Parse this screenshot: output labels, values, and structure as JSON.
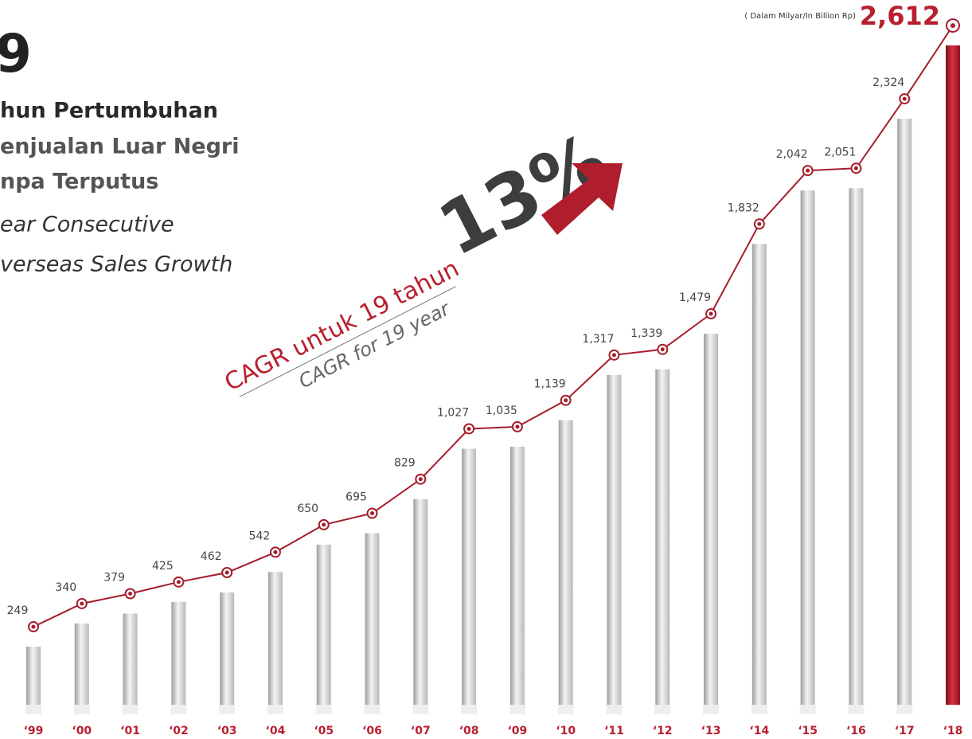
{
  "chart_data": {
    "type": "bar-line",
    "headline": [
      "9",
      "hun Pertumbuhan",
      "enjualan Luar Negri",
      "npa Terputus"
    ],
    "headline_en": [
      "ear Consecutive",
      "verseas Sales Growth"
    ],
    "annotation": "13%",
    "cagr_label": "CAGR untuk 19 tahun",
    "cagr_label_en": "CAGR for 19 year",
    "unit_note": "( Dalam Milyar/In Billion Rp)",
    "categories": [
      "‘99",
      "‘00",
      "‘01",
      "‘02",
      "‘03",
      "‘04",
      "‘05",
      "‘06",
      "‘07",
      "‘08",
      "‘09",
      "‘10",
      "‘11",
      "‘12",
      "‘13",
      "‘14",
      "‘15",
      "‘16",
      "‘17",
      "‘18"
    ],
    "values": [
      249,
      340,
      379,
      425,
      462,
      542,
      650,
      695,
      829,
      1027,
      1035,
      1139,
      1317,
      1339,
      1479,
      1832,
      2042,
      2051,
      2324,
      2612
    ],
    "value_labels": [
      "249",
      "340",
      "379",
      "425",
      "462",
      "542",
      "650",
      "695",
      "829",
      "1,027",
      "1,035",
      "1,139",
      "1,317",
      "1,339",
      "1,479",
      "1,832",
      "2,042",
      "2,051",
      "2,324",
      "2,612"
    ],
    "line_color": "#a51d2d",
    "bar_color": "#d6d6d6",
    "highlight_color": "#b8202f"
  }
}
